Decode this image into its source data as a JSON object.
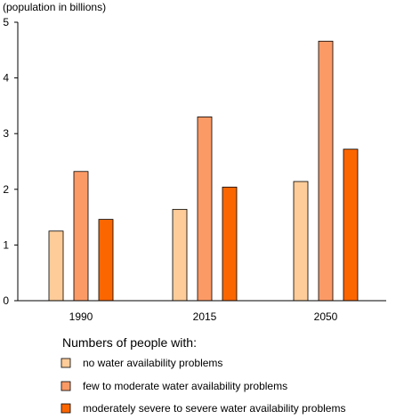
{
  "chart_data": {
    "type": "bar",
    "title": "",
    "ylabel": "(population in billions)",
    "xlabel": "",
    "categories": [
      "1990",
      "2015",
      "2050"
    ],
    "ylim": [
      0,
      5
    ],
    "yticks": [
      "0",
      "1",
      "2",
      "3",
      "4",
      "5"
    ],
    "series": [
      {
        "name": "no water availability problems",
        "values": [
          1.25,
          1.64,
          2.14
        ],
        "color": "#fdcc99"
      },
      {
        "name": "few to moderate water availability problems",
        "values": [
          2.32,
          3.3,
          4.66
        ],
        "color": "#fc9a66"
      },
      {
        "name": "moderately severe to severe water availability problems",
        "values": [
          1.46,
          2.04,
          2.72
        ],
        "color": "#fb6600"
      }
    ],
    "legend_title": "Numbers of people with:",
    "legend_position": "bottom",
    "grid": false
  }
}
